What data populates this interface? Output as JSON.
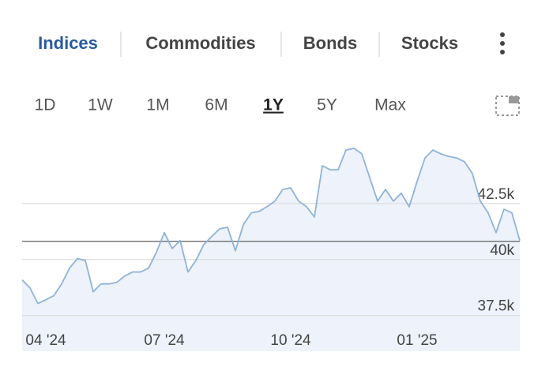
{
  "tabs": {
    "items": [
      "Indices",
      "Commodities",
      "Bonds",
      "Stocks"
    ],
    "active": 0
  },
  "ranges": {
    "items": [
      "1D",
      "1W",
      "1M",
      "6M",
      "1Y",
      "5Y",
      "Max"
    ],
    "active": 4
  },
  "chart_data": {
    "type": "area",
    "color": "#8fb3d9",
    "fill": "#edf2fb",
    "categories": [
      null,
      null,
      null,
      "04 '24",
      null,
      null,
      null,
      null,
      null,
      null,
      null,
      null,
      null,
      null,
      null,
      null,
      null,
      null,
      "07 '24",
      null,
      null,
      null,
      null,
      null,
      null,
      null,
      null,
      null,
      null,
      null,
      null,
      null,
      null,
      null,
      "10 '24",
      null,
      null,
      null,
      null,
      null,
      null,
      null,
      null,
      null,
      null,
      null,
      null,
      null,
      null,
      null,
      "01 '25",
      null,
      null,
      null,
      null,
      null,
      null,
      null,
      null,
      null,
      null,
      null,
      null,
      null
    ],
    "values": [
      39090,
      38730,
      38030,
      38200,
      38380,
      38910,
      39610,
      40040,
      39960,
      38560,
      38910,
      38910,
      38980,
      39260,
      39440,
      39440,
      39610,
      40320,
      41200,
      40490,
      40850,
      39440,
      39960,
      40670,
      41020,
      41370,
      41440,
      40390,
      41550,
      42080,
      42150,
      42360,
      42610,
      43130,
      43200,
      42610,
      42360,
      41900,
      44190,
      44010,
      44010,
      44890,
      44970,
      44720,
      43660,
      42610,
      43130,
      42610,
      42960,
      42360,
      43490,
      44540,
      44890,
      44720,
      44610,
      44540,
      44370,
      43840,
      42610,
      42080,
      41200,
      42250,
      42080,
      40850
    ],
    "reference_line": 40810,
    "ylim": [
      35900,
      45600
    ],
    "yticks": [
      {
        "value": 37500,
        "label": "37.5k"
      },
      {
        "value": 40000,
        "label": "40k"
      },
      {
        "value": 42500,
        "label": "42.5k"
      }
    ],
    "grid": true
  }
}
